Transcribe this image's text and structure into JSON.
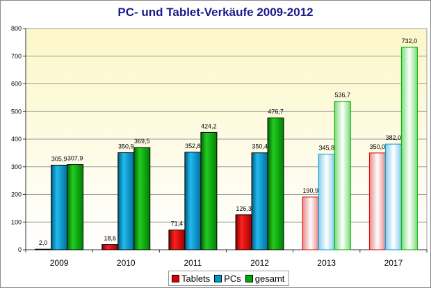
{
  "chart_data": {
    "type": "bar",
    "title": "PC- und Tablet-Verkäufe 2009-2012",
    "categories": [
      "2009",
      "2010",
      "2011",
      "2012",
      "2013",
      "2017"
    ],
    "series": [
      {
        "name": "Tablets",
        "color": "#dd0000",
        "values": [
          2.0,
          18.6,
          71.4,
          126.3,
          190.9,
          350.0
        ],
        "labels": [
          "2,0",
          "18,6",
          "71,4",
          "126,3",
          "190,9",
          "350,0"
        ]
      },
      {
        "name": "PCs",
        "color": "#0099cc",
        "values": [
          305.9,
          350.9,
          352.8,
          350.4,
          345.8,
          382.0
        ],
        "labels": [
          "305,9",
          "350,9",
          "352,8",
          "350,4",
          "345,8",
          "382,0"
        ]
      },
      {
        "name": "gesamt",
        "color": "#00aa00",
        "values": [
          307.9,
          369.5,
          424.2,
          476.7,
          536.7,
          732.0
        ],
        "labels": [
          "307,9",
          "369,5",
          "424,2",
          "476,7",
          "536,7",
          "732,0"
        ]
      }
    ],
    "forecast_categories": [
      "2013",
      "2017"
    ],
    "ylim": [
      0,
      800
    ],
    "yticks": [
      "0",
      "100",
      "200",
      "300",
      "400",
      "500",
      "600",
      "700",
      "800"
    ],
    "grid": "horizontal",
    "legend_position": "bottom",
    "background": "pale-yellow gradient"
  }
}
